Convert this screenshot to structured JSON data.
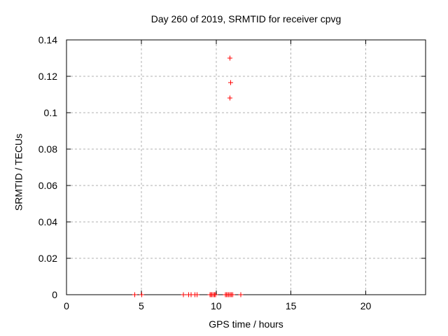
{
  "window": {
    "background": "#ffffff"
  },
  "chart_data": {
    "type": "scatter",
    "title": "Day 260 of 2019, SRMTID for receiver cpvg",
    "xlabel": "GPS time / hours",
    "ylabel": "SRMTID / TECUs",
    "xlim": [
      0,
      24
    ],
    "ylim": [
      0,
      0.14
    ],
    "xticks": [
      0,
      5,
      10,
      15,
      20
    ],
    "xtick_labels": [
      "0",
      "5",
      "10",
      "15",
      "20"
    ],
    "yticks": [
      0,
      0.02,
      0.04,
      0.06,
      0.08,
      0.1,
      0.12,
      0.14
    ],
    "ytick_labels": [
      "0",
      "0.02",
      "0.04",
      "0.06",
      "0.08",
      "0.1",
      "0.12",
      "0.14"
    ],
    "grid": true,
    "legend": "none",
    "marker": "plus",
    "marker_color": "#ff0000",
    "grid_color": "#b0b0b0",
    "frame_color": "#000000",
    "series": [
      {
        "points": [
          [
            4.55,
            0
          ],
          [
            5.02,
            0
          ],
          [
            7.82,
            0
          ],
          [
            8.17,
            0
          ],
          [
            8.33,
            0
          ],
          [
            8.58,
            0
          ],
          [
            8.72,
            0
          ],
          [
            9.58,
            0
          ],
          [
            9.66,
            0
          ],
          [
            9.74,
            0
          ],
          [
            9.82,
            0
          ],
          [
            9.9,
            0
          ],
          [
            9.97,
            0
          ],
          [
            10.62,
            0
          ],
          [
            10.7,
            0
          ],
          [
            10.78,
            0
          ],
          [
            10.86,
            0
          ],
          [
            10.94,
            0
          ],
          [
            11.02,
            0
          ],
          [
            11.1,
            0
          ],
          [
            11.66,
            0
          ],
          [
            10.93,
            0.108
          ],
          [
            10.96,
            0.1165
          ],
          [
            10.92,
            0.13
          ]
        ]
      }
    ]
  }
}
